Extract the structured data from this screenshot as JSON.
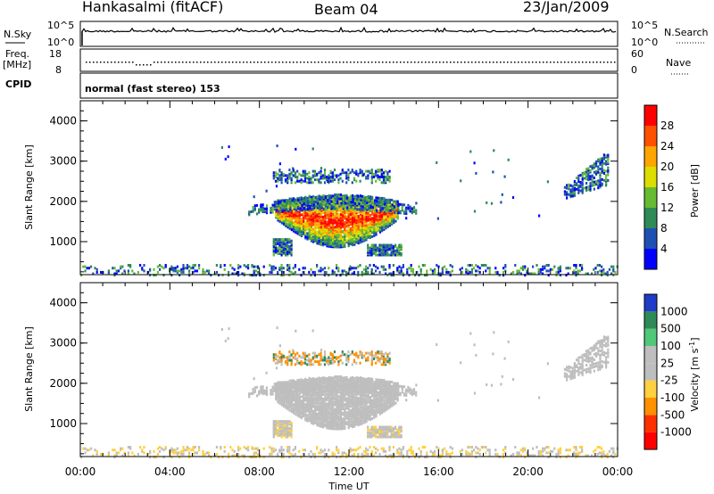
{
  "header": {
    "station": "Hankasalmi (fitACF)",
    "beam": "Beam 04",
    "date": "23/Jan/2009"
  },
  "top_panels": {
    "nsky_label": "N.Sky",
    "nsearch_label": "N.Search",
    "nsky_ticks": [
      "10^5",
      "10^0"
    ],
    "nsearch_ticks": [
      "10^5",
      "10^0"
    ],
    "freq_label_1": "Freq.",
    "freq_label_2": "[MHz]",
    "freq_ticks": [
      "18",
      "8"
    ],
    "nave_label": "Nave",
    "nave_ticks": [
      "60",
      "0"
    ],
    "cpid_label": "CPID",
    "cpid_text": "normal (fast stereo) 153"
  },
  "chart_data": [
    {
      "type": "heatmap",
      "name": "power-panel",
      "ylabel": "Slant Range [km]",
      "yticks": [
        "4000",
        "3000",
        "2000",
        "1000"
      ],
      "ytick_values": [
        4000,
        3000,
        2000,
        1000
      ],
      "ylim": [
        180,
        4500
      ],
      "xlim": [
        0,
        24
      ],
      "colorbar_label": "Power [dB]",
      "colorbar_ticks": [
        "28",
        "24",
        "20",
        "16",
        "12",
        "8",
        "4"
      ],
      "colorbar_colors": [
        "#0000ff",
        "#1e50b4",
        "#2e8b57",
        "#66bb33",
        "#dddd00",
        "#ffa500",
        "#ff5000",
        "#ff0000"
      ],
      "echo_regions": [
        {
          "t0": 8.7,
          "t1": 14.2,
          "r0": 900,
          "r1": 2200,
          "kind": "main"
        },
        {
          "t0": 7.5,
          "t1": 15.0,
          "r0": 1700,
          "r1": 2400,
          "kind": "arc"
        },
        {
          "t0": 8.6,
          "t1": 13.8,
          "r0": 2500,
          "r1": 2850,
          "kind": "upper"
        },
        {
          "t0": 8.6,
          "t1": 9.4,
          "r0": 700,
          "r1": 1100,
          "kind": "blob"
        },
        {
          "t0": 12.8,
          "t1": 14.3,
          "r0": 700,
          "r1": 950,
          "kind": "blob"
        },
        {
          "t0": 21.6,
          "t1": 23.6,
          "r0": 2100,
          "r1": 3100,
          "kind": "late"
        },
        {
          "t0": 0,
          "t1": 24,
          "r0": 200,
          "r1": 450,
          "kind": "ground"
        }
      ]
    },
    {
      "type": "heatmap",
      "name": "velocity-panel",
      "ylabel": "Slant Range [km]",
      "yticks": [
        "4000",
        "3000",
        "2000",
        "1000"
      ],
      "ytick_values": [
        4000,
        3000,
        2000,
        1000
      ],
      "ylim": [
        180,
        4500
      ],
      "xlim": [
        0,
        24
      ],
      "xlabel": "Time UT",
      "xticks": [
        "00:00",
        "04:00",
        "08:00",
        "12:00",
        "16:00",
        "20:00",
        "00:00"
      ],
      "xtick_values": [
        0,
        4,
        8,
        12,
        16,
        20,
        24
      ],
      "colorbar_label": "Velocity  [m s",
      "colorbar_label_sup": "-1",
      "colorbar_label_end": "]",
      "colorbar_ticks": [
        "1000",
        "500",
        "100",
        "25",
        "-25",
        "-100",
        "-500",
        "-1000"
      ],
      "colorbar_colors": [
        "#1e3cc8",
        "#2e8b57",
        "#50c878",
        "#bebebe",
        "#bebebe",
        "#ffd040",
        "#ff9000",
        "#ff3000",
        "#ff0000"
      ]
    }
  ]
}
